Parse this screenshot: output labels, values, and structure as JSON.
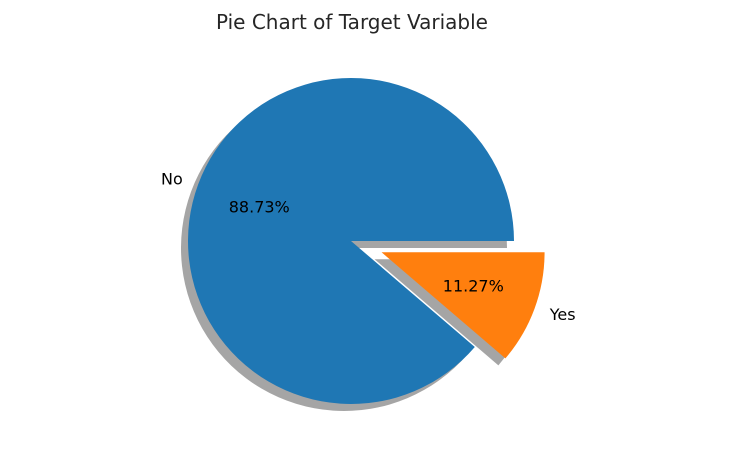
{
  "chart_data": {
    "type": "pie",
    "title": "Pie Chart of Target Variable",
    "labels": [
      "No",
      "Yes"
    ],
    "values": [
      88.73,
      11.27
    ],
    "value_labels": [
      "88.73%",
      "11.27%"
    ],
    "colors": [
      "#1f77b4",
      "#ff7f0e"
    ],
    "explode": [
      0,
      0.2
    ],
    "shadow": true,
    "startangle": 0,
    "direction": "counterclockwise"
  }
}
